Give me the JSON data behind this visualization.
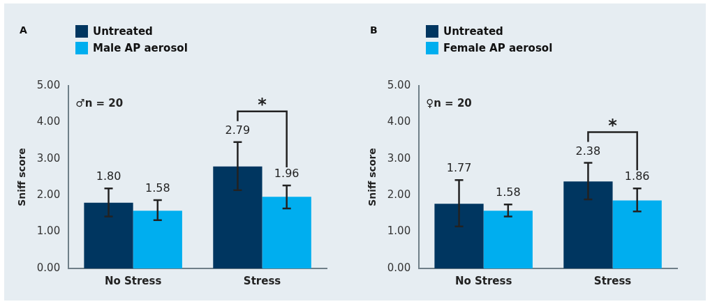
{
  "chart_data": [
    {
      "type": "bar",
      "title": "A",
      "categories": [
        "No Stress",
        "Stress"
      ],
      "ylabel": "Sniff score",
      "ylim": [
        0,
        5
      ],
      "yticks": [
        {
          "value": 0,
          "label": "0.00"
        },
        {
          "value": 1,
          "label": "1.00"
        },
        {
          "value": 2,
          "label": "2.00"
        },
        {
          "value": 3,
          "label": "3.00"
        },
        {
          "value": 4,
          "label": "4.00"
        },
        {
          "value": 5,
          "label": "5.00"
        }
      ],
      "grid": false,
      "legend": "top left",
      "data_labels": false,
      "series": [
        {
          "name": "Untreated",
          "color": "#003660",
          "values": [
            1.8,
            2.79
          ],
          "value_labels": [
            "1.80",
            "2.79"
          ],
          "errors": [
            [
              1.42,
              2.19
            ],
            [
              2.14,
              3.46
            ]
          ]
        },
        {
          "name": "Male AP aerosol",
          "color": "#00aeef",
          "values": [
            1.58,
            1.96
          ],
          "value_labels": [
            "1.58",
            "1.96"
          ],
          "errors": [
            [
              1.32,
              1.87
            ],
            [
              1.64,
              2.27
            ]
          ]
        }
      ],
      "annotations": [
        "♂n = 20",
        "*"
      ]
    },
    {
      "type": "bar",
      "title": "B",
      "categories": [
        "No Stress",
        "Stress"
      ],
      "ylabel": "Sniff score",
      "ylim": [
        0,
        5
      ],
      "yticks": [
        {
          "value": 0,
          "label": "0.00"
        },
        {
          "value": 1,
          "label": "1.00"
        },
        {
          "value": 2,
          "label": "2.00"
        },
        {
          "value": 3,
          "label": "3.00"
        },
        {
          "value": 4,
          "label": "4.00"
        },
        {
          "value": 5,
          "label": "5.00"
        }
      ],
      "grid": false,
      "legend": "top left",
      "data_labels": false,
      "series": [
        {
          "name": "Untreated",
          "color": "#003660",
          "values": [
            1.77,
            2.38
          ],
          "value_labels": [
            "1.77",
            "2.38"
          ],
          "errors": [
            [
              1.15,
              2.42
            ],
            [
              1.89,
              2.89
            ]
          ]
        },
        {
          "name": "Female AP aerosol",
          "color": "#00aeef",
          "values": [
            1.58,
            1.86
          ],
          "value_labels": [
            "1.58",
            "1.86"
          ],
          "errors": [
            [
              1.42,
              1.75
            ],
            [
              1.56,
              2.19
            ]
          ]
        }
      ],
      "annotations": [
        "♀n = 20",
        "*"
      ]
    }
  ]
}
